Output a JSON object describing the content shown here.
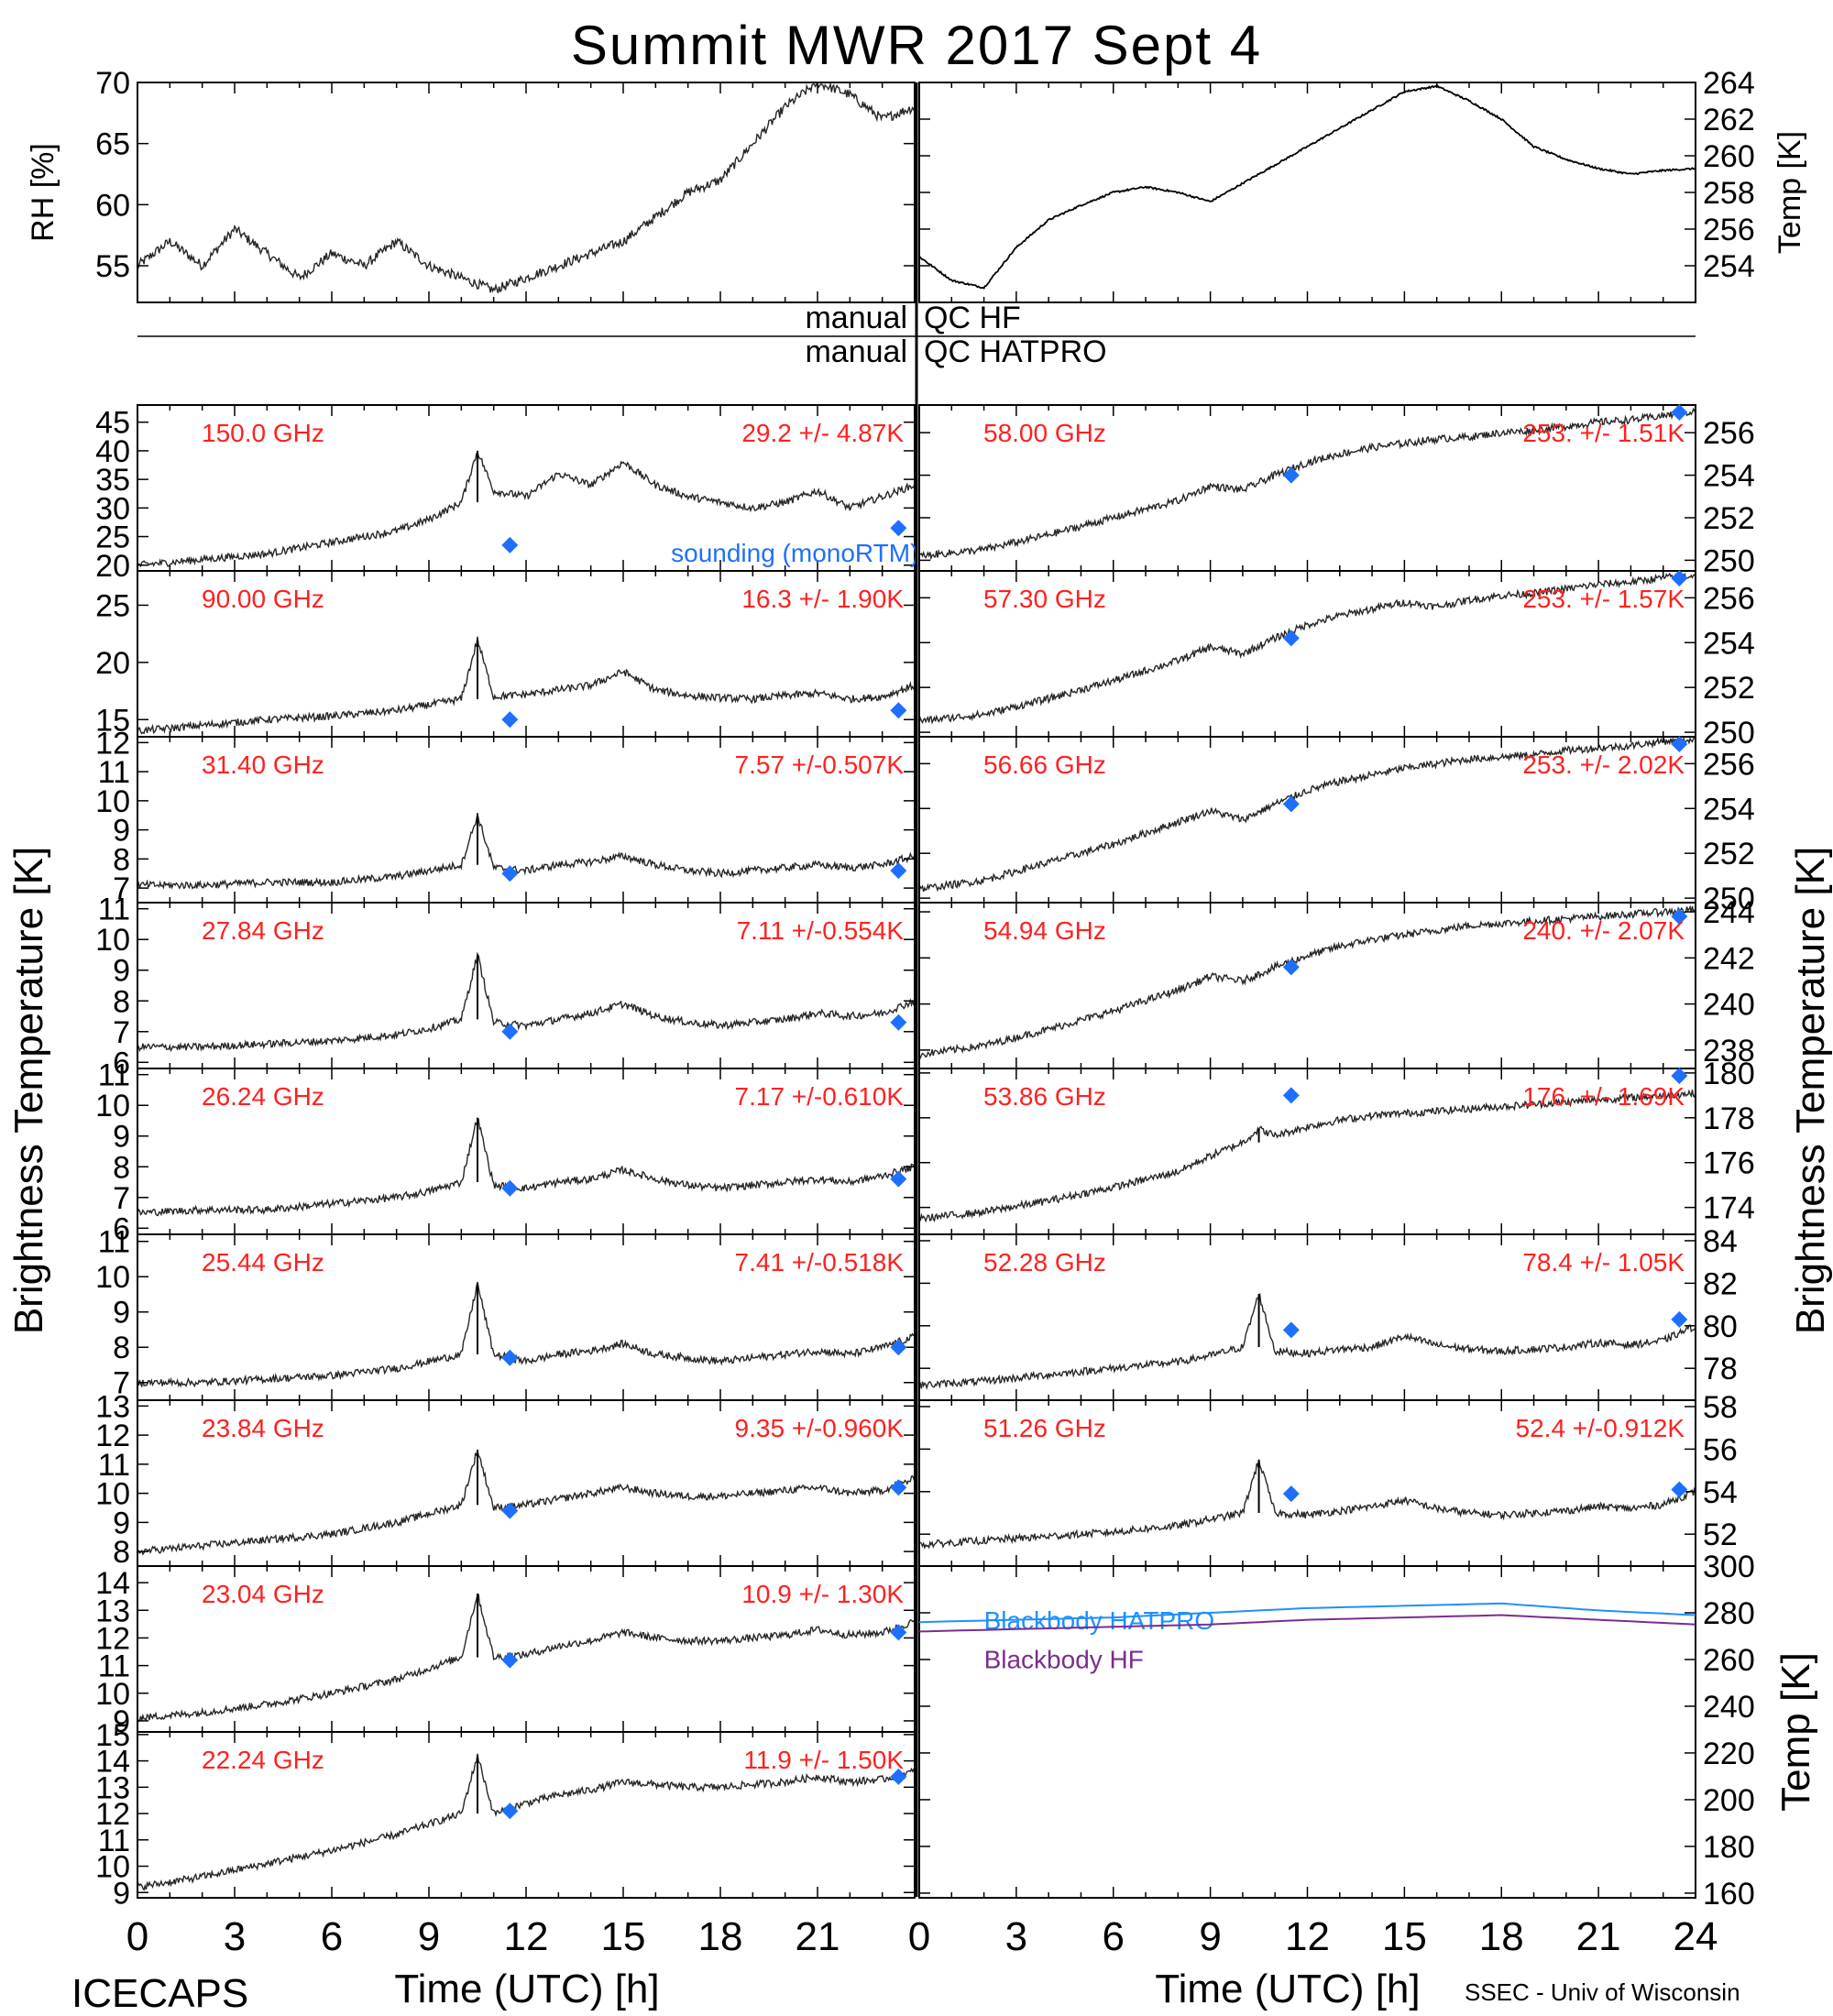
{
  "title": "Summit MWR 2017 Sept  4",
  "footer": {
    "left": "ICECAPS",
    "right": "SSEC - Univ of Wisconsin"
  },
  "xaxis": {
    "label": "Time (UTC) [h]",
    "left_ticks": [
      "0",
      "3",
      "6",
      "9",
      "12",
      "15",
      "18",
      "21"
    ],
    "right_ticks": [
      "0",
      "3",
      "6",
      "9",
      "12",
      "15",
      "18",
      "21",
      "24"
    ]
  },
  "big_ylabel_left": "Brightness Temperature [K]",
  "big_ylabel_right": "Brightness Temperature [K]",
  "qc": {
    "hf_left": "manual",
    "hf_right": "QC HF",
    "hatpro_left": "manual",
    "hatpro_right": "QC HATPRO"
  },
  "colors": {
    "trace": "#000000",
    "sounding": "#1f6fff",
    "annotation": "#ff2020",
    "bb_hatpro": "#1e90ff",
    "bb_hf": "#7b2d8e"
  },
  "chart_data": [
    {
      "id": "rh",
      "type": "scatter",
      "ylabel": "RH [%]",
      "ylim": [
        52,
        70
      ],
      "yticks": [
        "55",
        "60",
        "65",
        "70"
      ],
      "x": [
        0,
        1,
        2,
        3,
        4,
        5,
        6,
        7,
        8,
        9,
        10,
        11,
        12,
        13,
        14,
        15,
        16,
        17,
        18,
        19,
        20,
        21,
        22,
        23,
        24
      ],
      "values": [
        55,
        57,
        55,
        58,
        56,
        54,
        56,
        55,
        57,
        55,
        54,
        53,
        54,
        55,
        56,
        57,
        59,
        61,
        62,
        65,
        68,
        70,
        69,
        67,
        68
      ]
    },
    {
      "id": "temp",
      "type": "line",
      "ylabel": "Temp [K]",
      "ylim": [
        252,
        264
      ],
      "yticks": [
        "254",
        "256",
        "258",
        "260",
        "262",
        "264"
      ],
      "x": [
        0,
        1,
        2,
        3,
        4,
        5,
        6,
        7,
        8,
        9,
        10,
        11,
        12,
        13,
        14,
        15,
        16,
        17,
        18,
        19,
        20,
        21,
        22,
        23,
        24
      ],
      "values": [
        254.5,
        253.2,
        252.8,
        255,
        256.5,
        257.3,
        258,
        258.3,
        258,
        257.5,
        258.5,
        259.5,
        260.5,
        261.5,
        262.5,
        263.5,
        263.8,
        263,
        262,
        260.5,
        259.8,
        259.3,
        259,
        259.2,
        259.3
      ]
    },
    {
      "id": "ch150",
      "type": "scatter",
      "label": "150.0 GHz",
      "stat": "29.2 +/-  4.87K",
      "ylim": [
        19,
        48
      ],
      "yticks": [
        "20",
        "25",
        "30",
        "35",
        "40",
        "45"
      ],
      "x": [
        0,
        2,
        4,
        6,
        8,
        9,
        10,
        10.5,
        11,
        12,
        13,
        14,
        15,
        16,
        17,
        18,
        19,
        20,
        21,
        22,
        23,
        24
      ],
      "values": [
        20,
        21,
        22,
        24,
        26,
        28,
        31,
        40,
        33,
        32,
        36,
        34,
        38,
        34,
        32,
        31,
        30,
        31,
        33,
        30,
        32,
        34
      ],
      "sounding": [
        [
          11.5,
          23.5
        ],
        [
          23.5,
          26.5
        ]
      ],
      "sounding_label": "sounding (monoRTM)"
    },
    {
      "id": "ch90",
      "type": "scatter",
      "label": "90.00 GHz",
      "stat": "16.3 +/-  1.90K",
      "ylim": [
        13.5,
        28
      ],
      "yticks": [
        "15",
        "20",
        "25"
      ],
      "x": [
        0,
        2,
        4,
        6,
        8,
        9,
        10,
        10.5,
        11,
        12,
        13,
        14,
        15,
        16,
        17,
        18,
        19,
        20,
        21,
        22,
        23,
        24
      ],
      "values": [
        14,
        14.5,
        15,
        15.3,
        15.8,
        16.3,
        16.8,
        22,
        17,
        17.2,
        17.6,
        18,
        19.2,
        17.6,
        17.1,
        16.9,
        16.8,
        17.1,
        17.3,
        16.8,
        17,
        18
      ],
      "sounding": [
        [
          11.5,
          15
        ],
        [
          23.5,
          15.8
        ]
      ]
    },
    {
      "id": "ch31",
      "type": "scatter",
      "label": "31.40 GHz",
      "stat": "7.57 +/-0.507K",
      "ylim": [
        6.5,
        12.2
      ],
      "yticks": [
        "7",
        "8",
        "9",
        "10",
        "11",
        "12"
      ],
      "x": [
        0,
        2,
        4,
        6,
        8,
        9,
        10,
        10.5,
        11,
        12,
        13,
        14,
        15,
        16,
        17,
        18,
        19,
        20,
        21,
        22,
        23,
        24
      ],
      "values": [
        7.1,
        7.1,
        7.2,
        7.2,
        7.4,
        7.6,
        7.8,
        9.5,
        7.7,
        7.6,
        7.8,
        7.9,
        8.1,
        7.8,
        7.6,
        7.5,
        7.6,
        7.7,
        7.8,
        7.7,
        7.8,
        8.1
      ],
      "sounding": [
        [
          11.5,
          7.5
        ],
        [
          23.5,
          7.6
        ]
      ]
    },
    {
      "id": "ch2784",
      "type": "scatter",
      "label": "27.84 GHz",
      "stat": "7.11 +/-0.554K",
      "ylim": [
        5.8,
        11.2
      ],
      "yticks": [
        "6",
        "7",
        "8",
        "9",
        "10",
        "11"
      ],
      "x": [
        0,
        2,
        4,
        6,
        8,
        9,
        10,
        10.5,
        11,
        12,
        13,
        14,
        15,
        16,
        17,
        18,
        19,
        20,
        21,
        22,
        23,
        24
      ],
      "values": [
        6.5,
        6.5,
        6.6,
        6.7,
        6.9,
        7.1,
        7.4,
        9.5,
        7.3,
        7.2,
        7.4,
        7.6,
        7.9,
        7.5,
        7.3,
        7.2,
        7.3,
        7.4,
        7.6,
        7.5,
        7.6,
        8
      ],
      "sounding": [
        [
          11.5,
          7
        ],
        [
          23.5,
          7.3
        ]
      ]
    },
    {
      "id": "ch2624",
      "type": "scatter",
      "label": "26.24 GHz",
      "stat": "7.17 +/-0.610K",
      "ylim": [
        5.8,
        11.2
      ],
      "yticks": [
        "6",
        "7",
        "8",
        "9",
        "10",
        "11"
      ],
      "x": [
        0,
        2,
        4,
        6,
        8,
        9,
        10,
        10.5,
        11,
        12,
        13,
        14,
        15,
        16,
        17,
        18,
        19,
        20,
        21,
        22,
        23,
        24
      ],
      "values": [
        6.5,
        6.6,
        6.6,
        6.8,
        7,
        7.2,
        7.5,
        9.6,
        7.4,
        7.3,
        7.5,
        7.6,
        7.9,
        7.6,
        7.4,
        7.3,
        7.4,
        7.5,
        7.6,
        7.5,
        7.7,
        8
      ],
      "sounding": [
        [
          11.5,
          7.3
        ],
        [
          23.5,
          7.6
        ]
      ]
    },
    {
      "id": "ch2544",
      "type": "scatter",
      "label": "25.44 GHz",
      "stat": "7.41 +/-0.518K",
      "ylim": [
        6.5,
        11.2
      ],
      "yticks": [
        "7",
        "8",
        "9",
        "10",
        "11"
      ],
      "x": [
        0,
        2,
        4,
        6,
        8,
        9,
        10,
        10.5,
        11,
        12,
        13,
        14,
        15,
        16,
        17,
        18,
        19,
        20,
        21,
        22,
        23,
        24
      ],
      "values": [
        7,
        7,
        7.1,
        7.2,
        7.4,
        7.6,
        7.8,
        9.8,
        7.8,
        7.6,
        7.8,
        7.9,
        8.1,
        7.8,
        7.7,
        7.6,
        7.7,
        7.8,
        7.9,
        7.8,
        8,
        8.3
      ],
      "sounding": [
        [
          11.5,
          7.7
        ],
        [
          23.5,
          8
        ]
      ]
    },
    {
      "id": "ch2384",
      "type": "scatter",
      "label": "23.84 GHz",
      "stat": "9.35 +/-0.960K",
      "ylim": [
        7.5,
        13.2
      ],
      "yticks": [
        "8",
        "9",
        "10",
        "11",
        "12",
        "13"
      ],
      "x": [
        0,
        2,
        4,
        6,
        8,
        9,
        10,
        10.5,
        11,
        12,
        13,
        14,
        15,
        16,
        17,
        18,
        19,
        20,
        21,
        22,
        23,
        24
      ],
      "values": [
        8,
        8.2,
        8.4,
        8.6,
        9,
        9.3,
        9.6,
        11.5,
        9.5,
        9.6,
        9.8,
        10,
        10.2,
        10,
        9.9,
        9.9,
        10,
        10.1,
        10.2,
        10,
        10.1,
        10.5
      ],
      "sounding": [
        [
          11.5,
          9.4
        ],
        [
          23.5,
          10.2
        ]
      ]
    },
    {
      "id": "ch2304",
      "type": "scatter",
      "label": "23.04 GHz",
      "stat": "10.9 +/-  1.30K",
      "ylim": [
        8.6,
        14.6
      ],
      "yticks": [
        "9",
        "10",
        "11",
        "12",
        "13",
        "14"
      ],
      "x": [
        0,
        2,
        4,
        6,
        8,
        9,
        10,
        10.5,
        11,
        12,
        13,
        14,
        15,
        16,
        17,
        18,
        19,
        20,
        21,
        22,
        23,
        24
      ],
      "values": [
        9.1,
        9.3,
        9.6,
        10,
        10.5,
        10.9,
        11.3,
        13.6,
        11.3,
        11.4,
        11.7,
        11.9,
        12.2,
        12,
        11.9,
        11.9,
        12,
        12.1,
        12.3,
        12.1,
        12.2,
        12.6
      ],
      "sounding": [
        [
          11.5,
          11.2
        ],
        [
          23.5,
          12.2
        ]
      ]
    },
    {
      "id": "ch2224",
      "type": "scatter",
      "label": "22.24 GHz",
      "stat": "11.9 +/-  1.50K",
      "ylim": [
        8.8,
        15.1
      ],
      "yticks": [
        "9",
        "10",
        "11",
        "12",
        "13",
        "14",
        "15"
      ],
      "x": [
        0,
        2,
        4,
        6,
        8,
        9,
        10,
        10.5,
        11,
        12,
        13,
        14,
        15,
        16,
        17,
        18,
        19,
        20,
        21,
        22,
        23,
        24
      ],
      "values": [
        9.2,
        9.6,
        10.1,
        10.6,
        11.2,
        11.6,
        12,
        14.2,
        12,
        12.4,
        12.7,
        12.9,
        13.2,
        13.1,
        13,
        13,
        13.1,
        13.2,
        13.4,
        13.2,
        13.3,
        13.6
      ],
      "sounding": [
        [
          11.5,
          12.1
        ],
        [
          23.5,
          13.4
        ]
      ]
    },
    {
      "id": "ch5800",
      "type": "scatter",
      "label": "58.00 GHz",
      "stat": "253. +/-  1.51K",
      "ylim": [
        249.5,
        257.3
      ],
      "yticks": [
        "250",
        "252",
        "254",
        "256"
      ],
      "x": [
        0,
        2,
        4,
        6,
        8,
        9,
        10,
        11,
        12,
        13,
        14,
        15,
        16,
        17,
        18,
        19,
        20,
        21,
        22,
        23,
        24
      ],
      "values": [
        250.2,
        250.5,
        251.2,
        252,
        252.8,
        253.5,
        253.3,
        254,
        254.6,
        255,
        255.3,
        255.5,
        255.7,
        255.8,
        256,
        256.1,
        256.3,
        256.5,
        256.6,
        256.8,
        257
      ],
      "sounding": [
        [
          11.5,
          254
        ],
        [
          23.5,
          257
        ]
      ]
    },
    {
      "id": "ch5730",
      "type": "scatter",
      "label": "57.30 GHz",
      "stat": "253. +/-  1.57K",
      "ylim": [
        249.8,
        257.2
      ],
      "yticks": [
        "250",
        "252",
        "254",
        "256"
      ],
      "x": [
        0,
        2,
        4,
        6,
        8,
        9,
        10,
        11,
        12,
        13,
        14,
        15,
        16,
        17,
        18,
        19,
        20,
        21,
        22,
        23,
        24
      ],
      "values": [
        250.5,
        250.8,
        251.5,
        252.3,
        253.2,
        253.8,
        253.5,
        254.2,
        254.8,
        255.2,
        255.5,
        255.8,
        255.6,
        255.9,
        256.1,
        256.2,
        256.4,
        256.6,
        256.7,
        256.9,
        257
      ],
      "sounding": [
        [
          11.5,
          254.2
        ],
        [
          23.5,
          257
        ]
      ]
    },
    {
      "id": "ch5666",
      "type": "scatter",
      "label": "56.66 GHz",
      "stat": "253. +/-  2.02K",
      "ylim": [
        249.8,
        257.2
      ],
      "yticks": [
        "250",
        "252",
        "254",
        "256"
      ],
      "x": [
        0,
        2,
        4,
        6,
        8,
        9,
        10,
        11,
        12,
        13,
        14,
        15,
        16,
        17,
        18,
        19,
        20,
        21,
        22,
        23,
        24
      ],
      "values": [
        250.4,
        250.8,
        251.6,
        252.4,
        253.4,
        253.9,
        253.5,
        254.2,
        254.8,
        255.2,
        255.5,
        255.8,
        256,
        256.2,
        256.3,
        256.4,
        256.6,
        256.7,
        256.8,
        257,
        257.1
      ],
      "sounding": [
        [
          11.5,
          254.2
        ],
        [
          23.5,
          257
        ]
      ]
    },
    {
      "id": "ch5494",
      "type": "scatter",
      "label": "54.94 GHz",
      "stat": "240. +/-  2.07K",
      "ylim": [
        237.2,
        244.4
      ],
      "yticks": [
        "238",
        "240",
        "242",
        "244"
      ],
      "x": [
        0,
        2,
        4,
        6,
        8,
        9,
        10,
        11,
        12,
        13,
        14,
        15,
        16,
        17,
        18,
        19,
        20,
        21,
        22,
        23,
        24
      ],
      "values": [
        237.8,
        238.2,
        238.9,
        239.7,
        240.6,
        241.2,
        241,
        241.6,
        242.1,
        242.5,
        242.8,
        243,
        243.2,
        243.4,
        243.5,
        243.6,
        243.7,
        243.8,
        243.9,
        244,
        244.1
      ],
      "sounding": [
        [
          11.5,
          241.6
        ],
        [
          23.5,
          243.8
        ]
      ]
    },
    {
      "id": "ch5386",
      "type": "scatter",
      "label": "53.86 GHz",
      "stat": "176. +/-  1.69K",
      "ylim": [
        172.8,
        180.2
      ],
      "yticks": [
        "174",
        "176",
        "178",
        "180"
      ],
      "x": [
        0,
        2,
        4,
        6,
        8,
        9,
        10,
        10.5,
        11,
        12,
        13,
        14,
        15,
        16,
        17,
        18,
        19,
        20,
        21,
        22,
        23,
        24
      ],
      "values": [
        173.5,
        173.8,
        174.3,
        174.9,
        175.6,
        176.3,
        176.9,
        177.5,
        177.2,
        177.6,
        177.9,
        178.1,
        178.2,
        178.3,
        178.4,
        178.5,
        178.6,
        178.7,
        178.8,
        178.9,
        179,
        179.1
      ],
      "sounding": [
        [
          11.5,
          179
        ],
        [
          23.5,
          180.2
        ]
      ]
    },
    {
      "id": "ch5228",
      "type": "scatter",
      "label": "52.28 GHz",
      "stat": "78.4 +/-  1.05K",
      "ylim": [
        76.5,
        84.3
      ],
      "yticks": [
        "78",
        "80",
        "82",
        "84"
      ],
      "x": [
        0,
        2,
        4,
        6,
        8,
        9,
        10,
        10.5,
        11,
        12,
        13,
        14,
        15,
        16,
        17,
        18,
        19,
        20,
        21,
        22,
        23,
        24
      ],
      "values": [
        77.2,
        77.4,
        77.7,
        78,
        78.3,
        78.6,
        79,
        81.5,
        78.8,
        78.7,
        78.9,
        79,
        79.5,
        79.1,
        78.9,
        78.8,
        78.9,
        79,
        79.2,
        79.1,
        79.3,
        80
      ],
      "sounding": [
        [
          11.5,
          79.8
        ],
        [
          23.5,
          80.3
        ]
      ]
    },
    {
      "id": "ch5126",
      "type": "scatter",
      "label": "51.26 GHz",
      "stat": "52.4 +/-0.912K",
      "ylim": [
        50.5,
        58.3
      ],
      "yticks": [
        "52",
        "54",
        "56",
        "58"
      ],
      "x": [
        0,
        2,
        4,
        6,
        8,
        9,
        10,
        10.5,
        11,
        12,
        13,
        14,
        15,
        16,
        17,
        18,
        19,
        20,
        21,
        22,
        23,
        24
      ],
      "values": [
        51.5,
        51.7,
        51.9,
        52.1,
        52.4,
        52.7,
        53,
        55.5,
        53,
        52.9,
        53.1,
        53.3,
        53.6,
        53.2,
        53,
        52.9,
        53,
        53.1,
        53.3,
        53.2,
        53.4,
        54
      ],
      "sounding": [
        [
          11.5,
          53.9
        ],
        [
          23.5,
          54.1
        ]
      ]
    },
    {
      "id": "blackbody",
      "type": "line",
      "ylabel": "Temp [K]",
      "ylim": [
        158,
        300
      ],
      "yticks": [
        "160",
        "180",
        "200",
        "220",
        "240",
        "260",
        "280",
        "300"
      ],
      "series": [
        {
          "name": "Blackbody HATPRO",
          "x": [
            0,
            3,
            6,
            9,
            12,
            15,
            18,
            21,
            24
          ],
          "values": [
            276,
            277,
            278,
            280,
            282,
            283,
            284,
            281,
            279
          ]
        },
        {
          "name": "Blackbody HF",
          "x": [
            0,
            3,
            6,
            9,
            12,
            15,
            18,
            21,
            24
          ],
          "values": [
            272,
            273,
            274,
            275,
            277,
            278,
            279,
            277,
            275
          ]
        }
      ]
    }
  ]
}
